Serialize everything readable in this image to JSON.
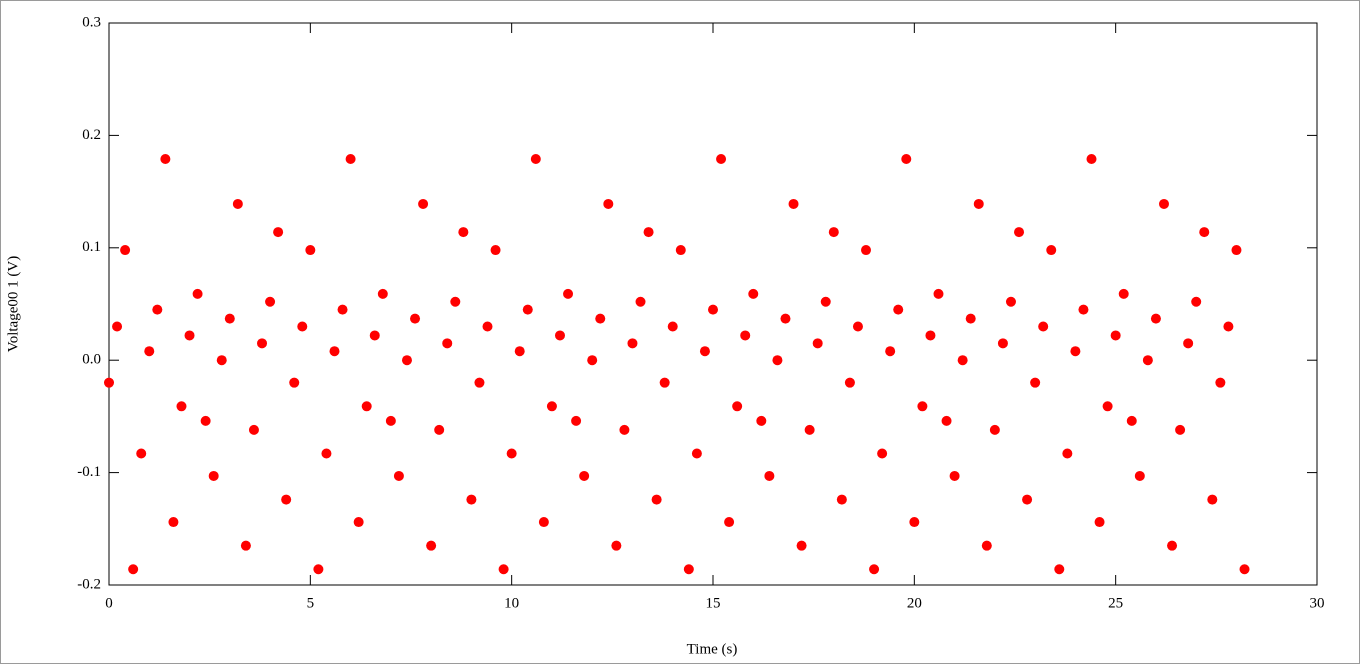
{
  "chart_data": {
    "type": "scatter",
    "xlabel": "Time (s)",
    "ylabel": "Voltage00 1 (V)",
    "xlim": [
      0,
      30
    ],
    "xticks": [
      0,
      5,
      10,
      15,
      20,
      25,
      30
    ],
    "ylim": [
      -0.2,
      0.3
    ],
    "yticks": [
      -0.2,
      -0.1,
      {
        "value": 0,
        "label": "0.0"
      },
      0.1,
      0.2,
      0.3
    ],
    "grid": false,
    "color": "#ff0000",
    "x": [
      0,
      0.2,
      0.4,
      0.6,
      0.8,
      1,
      1.2,
      1.4,
      1.6,
      1.8,
      2,
      2.2,
      2.4,
      2.6,
      2.8,
      3,
      3.2,
      3.4,
      3.6,
      3.8,
      4,
      4.2,
      4.4,
      4.6,
      4.8,
      5,
      5.2,
      5.4,
      5.6,
      5.8,
      6,
      6.2,
      6.4,
      6.6,
      6.8,
      7,
      7.2,
      7.4,
      7.6,
      7.8,
      8,
      8.2,
      8.4,
      8.6,
      8.8,
      9,
      9.2,
      9.4,
      9.6,
      9.8,
      10,
      10.2,
      10.4,
      10.6,
      10.8,
      11,
      11.2,
      11.4,
      11.6,
      11.8,
      12,
      12.2,
      12.4,
      12.6,
      12.8,
      13,
      13.2,
      13.4,
      13.6,
      13.8,
      14,
      14.2,
      14.4,
      14.6,
      14.8,
      15,
      15.2,
      15.4,
      15.6,
      15.8,
      16,
      16.2,
      16.4,
      16.6,
      16.8,
      17,
      17.2,
      17.4,
      17.6,
      17.8,
      18,
      18.2,
      18.4,
      18.6,
      18.8,
      19,
      19.2,
      19.4,
      19.6,
      19.8,
      20,
      20.2,
      20.4,
      20.6,
      20.8,
      21,
      21.2,
      21.4,
      21.6,
      21.8,
      22,
      22.2,
      22.4,
      22.6,
      22.8,
      23,
      23.2,
      23.4,
      23.6,
      23.8,
      24,
      24.2,
      24.4,
      24.6,
      24.8,
      25,
      25.2,
      25.4,
      25.6,
      25.8,
      26,
      26.2,
      26.4,
      26.6,
      26.8,
      27,
      27.2,
      27.4,
      27.6,
      27.8,
      28,
      28.2
    ],
    "values": [
      -0.02,
      0.03,
      0.098,
      -0.186,
      -0.083,
      0.008,
      0.045,
      0.179,
      -0.144,
      -0.041,
      0.022,
      0.059,
      -0.054,
      -0.103,
      0.0,
      0.037,
      0.139,
      -0.165,
      -0.062,
      0.015,
      0.052,
      0.114,
      -0.124,
      -0.02,
      0.03,
      0.098,
      -0.186,
      -0.083,
      0.008,
      0.045,
      0.179,
      -0.144,
      -0.041,
      0.022,
      0.059,
      -0.054,
      -0.103,
      0.0,
      0.037,
      0.139,
      -0.165,
      -0.062,
      0.015,
      0.052,
      0.114,
      -0.124,
      -0.02,
      0.03,
      0.098,
      -0.186,
      -0.083,
      0.008,
      0.045,
      0.179,
      -0.144,
      -0.041,
      0.022,
      0.059,
      -0.054,
      -0.103,
      0.0,
      0.037,
      0.139,
      -0.165,
      -0.062,
      0.015,
      0.052,
      0.114,
      -0.124,
      -0.02,
      0.03,
      0.098,
      -0.186,
      -0.083,
      0.008,
      0.045,
      0.179,
      -0.144,
      -0.041,
      0.022,
      0.059,
      -0.054,
      -0.103,
      0.0,
      0.037,
      0.139,
      -0.165,
      -0.062,
      0.015,
      0.052,
      0.114,
      -0.124,
      -0.02,
      0.03,
      0.098,
      -0.186,
      -0.083,
      0.008,
      0.045,
      0.179,
      -0.144,
      -0.041,
      0.022,
      0.059,
      -0.054,
      -0.103,
      0.0,
      0.037,
      0.139,
      -0.165,
      -0.062,
      0.015,
      0.052,
      0.114,
      -0.124,
      -0.02,
      0.03,
      0.098,
      -0.186,
      -0.083,
      0.008,
      0.045,
      0.179,
      -0.144,
      -0.041,
      0.022,
      0.059,
      -0.054,
      -0.103,
      0.0,
      0.037,
      0.139,
      -0.165,
      -0.062,
      0.015,
      0.052,
      0.114,
      -0.124,
      -0.02,
      0.03,
      0.098,
      -0.186
    ]
  }
}
